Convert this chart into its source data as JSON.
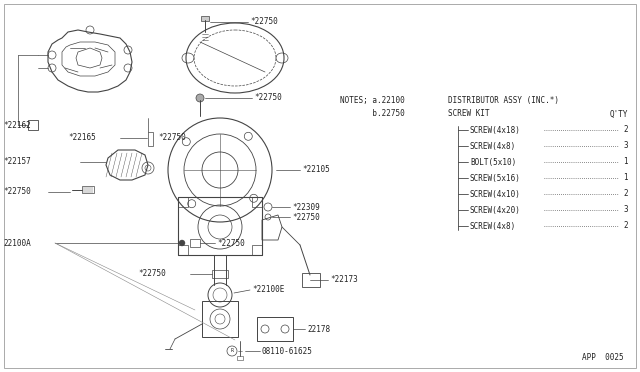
{
  "bg_color": "#ffffff",
  "line_color": "#444444",
  "text_color": "#222222",
  "fig_width": 6.4,
  "fig_height": 3.72,
  "page_code": "APP  0025",
  "bom_items": [
    [
      "SCREW(4x18)",
      "2"
    ],
    [
      "SCREW(4x8)",
      "3"
    ],
    [
      "BOLT(5x10)",
      "1"
    ],
    [
      "SCREW(5x16)",
      "1"
    ],
    [
      "SCREW(4x10)",
      "2"
    ],
    [
      "SCREW(4x20)",
      "3"
    ],
    [
      "SCREW(4x8)",
      "2"
    ]
  ]
}
